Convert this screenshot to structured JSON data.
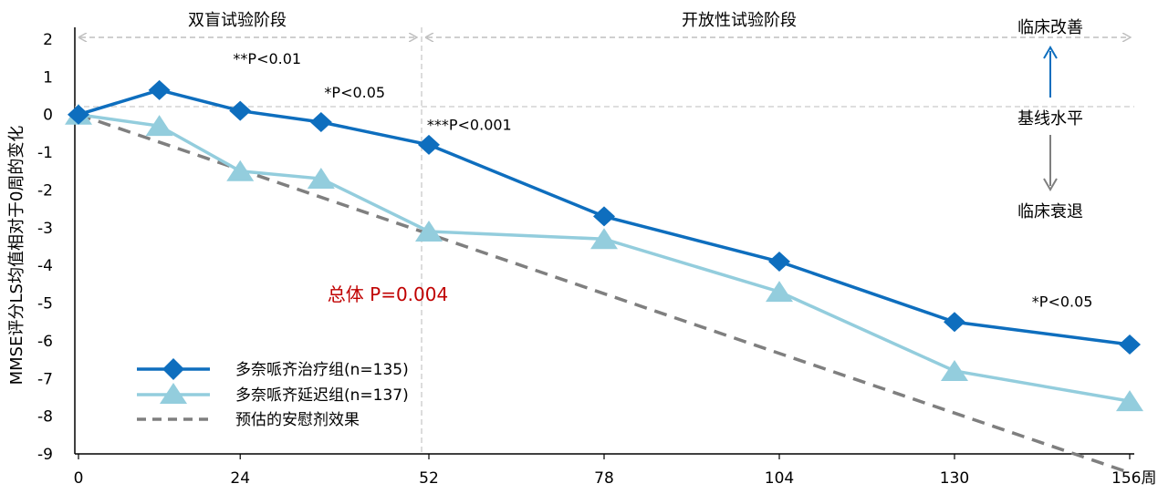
{
  "chart_data": {
    "type": "line",
    "ylabel": "MMSE评分LS均值相对于0周的变化",
    "xunit": "周",
    "xlim": [
      0,
      156
    ],
    "ylim": [
      -9,
      2
    ],
    "x_ticks": [
      0,
      24,
      52,
      78,
      104,
      130,
      156
    ],
    "x_tick_labels": [
      "0",
      "24",
      "52",
      "78",
      "104",
      "130",
      "156周"
    ],
    "y_ticks": [
      2,
      1,
      0,
      -1,
      -2,
      -3,
      -4,
      -5,
      -6,
      -7,
      -8,
      -9
    ],
    "phases": [
      {
        "label": "双盲试验阶段",
        "x_start": 0,
        "x_end": 52
      },
      {
        "label": "开放性试验阶段",
        "x_start": 52,
        "x_end": 156
      }
    ],
    "series": [
      {
        "name": "多奈哌齐治疗组(n=135)",
        "color": "#0E6EBE",
        "marker": "diamond",
        "x": [
          0,
          12,
          24,
          36,
          52,
          78,
          104,
          130,
          156
        ],
        "y": [
          0,
          0.65,
          0.1,
          -0.2,
          -0.8,
          -2.7,
          -3.9,
          -5.5,
          -6.1
        ]
      },
      {
        "name": "多奈哌齐延迟组(n=137)",
        "color": "#93CDDD",
        "marker": "triangle",
        "x": [
          0,
          12,
          24,
          36,
          52,
          78,
          104,
          130,
          156
        ],
        "y": [
          0,
          -0.3,
          -1.5,
          -1.7,
          -3.1,
          -3.3,
          -4.7,
          -6.8,
          -7.6
        ]
      },
      {
        "name": "预估的安慰剂效果",
        "color": "#7F7F7F",
        "dash": true,
        "x": [
          0,
          156
        ],
        "y": [
          0,
          -9.5
        ]
      }
    ],
    "annotations": [
      {
        "text": "**P<0.01",
        "x": 28,
        "y": 1.35
      },
      {
        "text": "*P<0.05",
        "x": 41,
        "y": 0.45
      },
      {
        "text": "***P<0.001",
        "x": 58,
        "y": -0.4
      },
      {
        "text": "*P<0.05",
        "x": 146,
        "y": -5.1
      }
    ],
    "overall_text": {
      "text": "总体 P=0.004",
      "color": "#C00000"
    },
    "side_labels": {
      "improve": "临床改善",
      "baseline": "基线水平",
      "decline": "临床衰退"
    },
    "grid": false,
    "legend_position": "bottom-left"
  }
}
